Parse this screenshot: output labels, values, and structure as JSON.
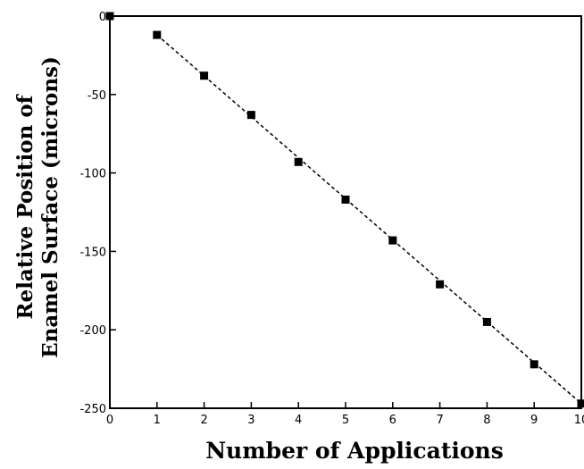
{
  "chart_data": {
    "type": "scatter",
    "title": "",
    "xlabel": "Number of Applications",
    "ylabel_lines": [
      "Relative Position of",
      "Enamel Surface (microns)"
    ],
    "xlim": [
      0,
      10
    ],
    "ylim": [
      -250,
      0
    ],
    "x_ticks": [
      "0",
      "1",
      "2",
      "3",
      "4",
      "5",
      "6",
      "7",
      "8",
      "9",
      "10"
    ],
    "y_ticks": [
      "0",
      "-50",
      "-100",
      "-150",
      "-200",
      "-250"
    ],
    "grid": false,
    "series": [
      {
        "x": [
          0,
          1,
          2,
          3,
          4,
          5,
          6,
          7,
          8,
          9,
          10
        ],
        "y": [
          0,
          -12,
          -38,
          -63,
          -93,
          -117,
          -143,
          -171,
          -195,
          -222,
          -247
        ],
        "marker": "square",
        "color": "#000000"
      }
    ],
    "fit_line": {
      "style": "dashed",
      "x": [
        1,
        10
      ],
      "y": [
        -12,
        -247
      ],
      "color": "#000000"
    }
  }
}
